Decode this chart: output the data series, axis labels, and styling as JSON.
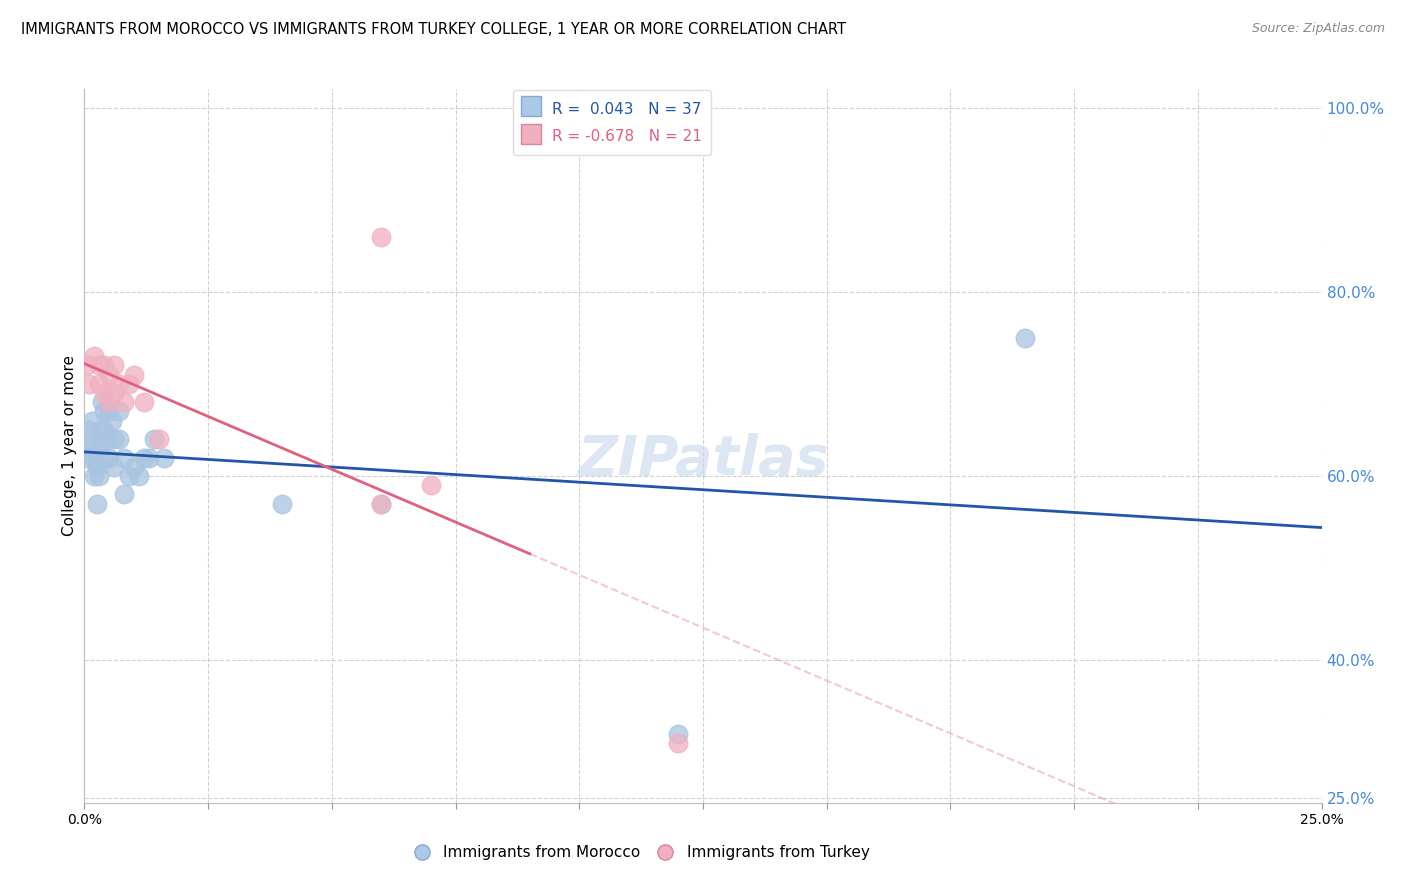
{
  "title": "IMMIGRANTS FROM MOROCCO VS IMMIGRANTS FROM TURKEY COLLEGE, 1 YEAR OR MORE CORRELATION CHART",
  "source": "Source: ZipAtlas.com",
  "ylabel": "College, 1 year or more",
  "watermark": "ZIPatlas",
  "xlim": [
    0.0,
    0.25
  ],
  "ylim": [
    0.245,
    1.02
  ],
  "yticks": [
    0.25,
    0.4,
    0.6,
    0.8,
    1.0
  ],
  "ytick_labels": [
    "25.0%",
    "40.0%",
    "60.0%",
    "80.0%",
    "100.0%"
  ],
  "xticks": [
    0.0,
    0.025,
    0.05,
    0.075,
    0.1,
    0.125,
    0.15,
    0.175,
    0.2,
    0.225,
    0.25
  ],
  "xtick_labels_show": [
    "0.0%",
    "",
    "",
    "",
    "",
    "",
    "",
    "",
    "",
    "",
    "25.0%"
  ],
  "morocco_color": "#a8c4e0",
  "turkey_color": "#f0b0c0",
  "morocco_line_color": "#2255aa",
  "turkey_line_color": "#e06080",
  "morocco_R": 0.043,
  "morocco_N": 37,
  "turkey_R": -0.678,
  "turkey_N": 21,
  "morocco_x": [
    0.0005,
    0.001,
    0.001,
    0.0015,
    0.0015,
    0.002,
    0.002,
    0.0025,
    0.0025,
    0.003,
    0.003,
    0.0035,
    0.0035,
    0.004,
    0.004,
    0.004,
    0.0045,
    0.005,
    0.005,
    0.0055,
    0.006,
    0.006,
    0.007,
    0.007,
    0.008,
    0.008,
    0.009,
    0.01,
    0.011,
    0.012,
    0.013,
    0.014,
    0.016,
    0.04,
    0.06,
    0.12,
    0.19
  ],
  "morocco_y": [
    0.62,
    0.64,
    0.65,
    0.63,
    0.66,
    0.6,
    0.62,
    0.57,
    0.61,
    0.6,
    0.63,
    0.65,
    0.68,
    0.62,
    0.65,
    0.67,
    0.64,
    0.62,
    0.67,
    0.66,
    0.61,
    0.64,
    0.64,
    0.67,
    0.58,
    0.62,
    0.6,
    0.61,
    0.6,
    0.62,
    0.62,
    0.64,
    0.62,
    0.57,
    0.57,
    0.32,
    0.75
  ],
  "turkey_x": [
    0.0005,
    0.001,
    0.002,
    0.003,
    0.003,
    0.004,
    0.004,
    0.005,
    0.005,
    0.006,
    0.006,
    0.007,
    0.008,
    0.009,
    0.01,
    0.012,
    0.015,
    0.06,
    0.07,
    0.06,
    0.12
  ],
  "turkey_y": [
    0.72,
    0.7,
    0.73,
    0.7,
    0.72,
    0.69,
    0.72,
    0.68,
    0.71,
    0.69,
    0.72,
    0.7,
    0.68,
    0.7,
    0.71,
    0.68,
    0.64,
    0.57,
    0.59,
    0.86,
    0.31
  ],
  "grid_color": "#cccccc",
  "background_color": "#ffffff",
  "legend_box_color_morocco": "#aac8e8",
  "legend_box_color_turkey": "#f0b0c0"
}
